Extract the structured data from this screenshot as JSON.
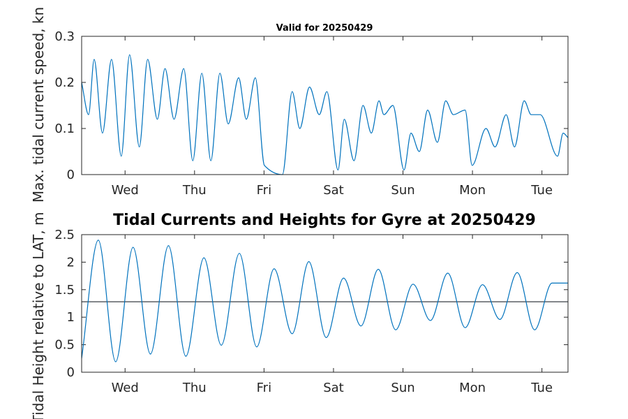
{
  "chart_data": [
    {
      "type": "line",
      "title": "Valid for 20250429",
      "xlabel": "",
      "ylabel": "Max. tidal current speed, kn",
      "xlim": [
        0,
        7
      ],
      "ylim": [
        0,
        0.3
      ],
      "yticks": [
        0,
        0.1,
        0.2,
        0.3
      ],
      "ytick_labels": [
        "0",
        "0.1",
        "0.2",
        "0.3"
      ],
      "xticks": [
        0.625,
        1.625,
        2.625,
        3.625,
        4.625,
        5.625,
        6.625
      ],
      "xtick_labels": [
        "Wed",
        "Thu",
        "Fri",
        "Sat",
        "Sun",
        "Mon",
        "Tue"
      ],
      "grid": false,
      "line_color": "#0072BD",
      "series": [
        {
          "x": [
            0.0,
            0.1,
            0.18,
            0.3,
            0.43,
            0.57,
            0.69,
            0.83,
            0.95,
            1.09,
            1.2,
            1.33,
            1.47,
            1.6,
            1.73,
            1.86,
            1.99,
            2.11,
            2.26,
            2.37,
            2.5,
            2.63,
            2.89,
            3.03,
            3.14,
            3.28,
            3.42,
            3.53,
            3.69,
            3.78,
            3.92,
            4.05,
            4.17,
            4.28,
            4.35,
            4.48,
            4.64,
            4.74,
            4.86,
            4.98,
            5.12,
            5.24,
            5.35,
            5.52,
            5.62,
            5.82,
            5.95,
            6.11,
            6.23,
            6.37,
            6.47,
            6.6,
            6.85,
            6.93,
            7.0
          ],
          "y": [
            0.2,
            0.13,
            0.25,
            0.09,
            0.25,
            0.04,
            0.26,
            0.06,
            0.25,
            0.12,
            0.23,
            0.12,
            0.23,
            0.03,
            0.22,
            0.03,
            0.22,
            0.11,
            0.21,
            0.12,
            0.21,
            0.02,
            0.0,
            0.18,
            0.1,
            0.19,
            0.13,
            0.18,
            0.01,
            0.12,
            0.03,
            0.15,
            0.09,
            0.16,
            0.13,
            0.15,
            0.01,
            0.09,
            0.05,
            0.14,
            0.07,
            0.16,
            0.13,
            0.14,
            0.02,
            0.1,
            0.06,
            0.13,
            0.06,
            0.16,
            0.13,
            0.13,
            0.04,
            0.09,
            0.08
          ]
        }
      ]
    },
    {
      "type": "line",
      "title": "Tidal Currents and Heights for Gyre at 20250429",
      "xlabel": "",
      "ylabel": "Tidal Height relative to LAT, m",
      "xlim": [
        0,
        7
      ],
      "ylim": [
        0,
        2.5
      ],
      "yticks": [
        0,
        0.5,
        1,
        1.5,
        2,
        2.5
      ],
      "ytick_labels": [
        "0",
        "0.5",
        "1",
        "1.5",
        "2",
        "2.5"
      ],
      "xticks": [
        0.625,
        1.625,
        2.625,
        3.625,
        4.625,
        5.625,
        6.625
      ],
      "xtick_labels": [
        "Wed",
        "Thu",
        "Fri",
        "Sat",
        "Sun",
        "Mon",
        "Tue"
      ],
      "grid": false,
      "line_color": "#0072BD",
      "reference_line": {
        "y": 1.28,
        "color": "#3a3f45"
      },
      "series": [
        {
          "x": [
            0.0,
            0.24,
            0.49,
            0.74,
            0.99,
            1.25,
            1.5,
            1.76,
            2.01,
            2.27,
            2.52,
            2.77,
            3.03,
            3.27,
            3.52,
            3.77,
            4.02,
            4.27,
            4.52,
            4.77,
            5.02,
            5.27,
            5.52,
            5.77,
            6.02,
            6.27,
            6.52,
            6.77,
            7.0
          ],
          "y": [
            0.25,
            2.4,
            0.19,
            2.27,
            0.33,
            2.3,
            0.29,
            2.08,
            0.49,
            2.16,
            0.46,
            1.88,
            0.7,
            2.01,
            0.63,
            1.71,
            0.84,
            1.87,
            0.77,
            1.6,
            0.94,
            1.8,
            0.81,
            1.59,
            0.96,
            1.81,
            0.77,
            1.62,
            1.62
          ]
        }
      ]
    }
  ]
}
